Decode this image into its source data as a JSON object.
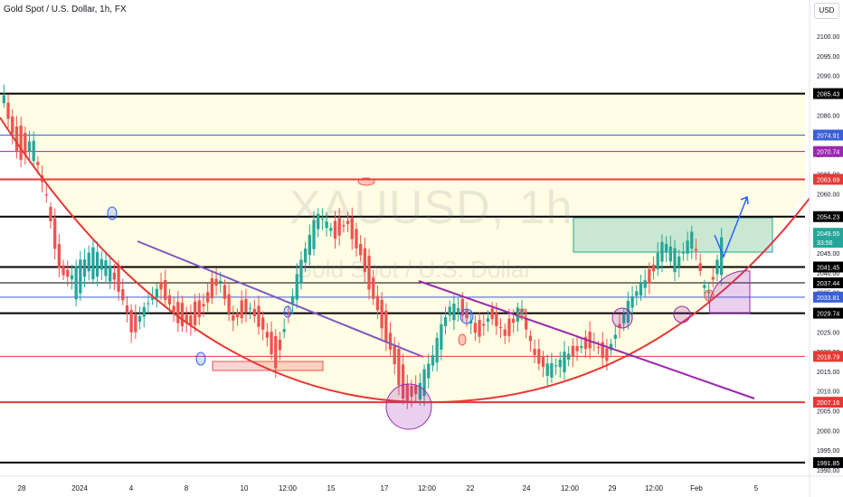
{
  "header": {
    "symbol_title": "Gold Spot / U.S. Dollar, 1h, FX",
    "currency": "USD"
  },
  "watermark": {
    "ticker": "XAUUSD, 1h",
    "name": "Gold Spot / U.S. Dollar"
  },
  "chart_data": {
    "type": "candlestick",
    "ylim": [
      1990,
      2103
    ],
    "y_ticks": [
      "2100.00",
      "2095.00",
      "2090.00",
      "2085.00",
      "2080.00",
      "2075.00",
      "2070.00",
      "2065.00",
      "2060.00",
      "2055.00",
      "2050.00",
      "2045.00",
      "2040.00",
      "2035.00",
      "2030.00",
      "2025.00",
      "2020.00",
      "2015.00",
      "2010.00",
      "2005.00",
      "2000.00",
      "1995.00",
      "1990.00"
    ],
    "x_ticks": [
      "28",
      "2024",
      "4",
      "8",
      "10",
      "12:00",
      "15",
      "17",
      "12:00",
      "22",
      "24",
      "12:00",
      "29",
      "12:00",
      "Feb",
      "5"
    ],
    "price_path": [
      [
        2083,
        2085
      ],
      [
        2078,
        2068
      ],
      [
        2070,
        2074
      ],
      [
        2061,
        2058
      ],
      [
        2045,
        2038
      ],
      [
        2034,
        2041
      ],
      [
        2040,
        2046
      ],
      [
        2039,
        2044
      ],
      [
        2040,
        2036
      ],
      [
        2028,
        2024
      ],
      [
        2030,
        2033
      ],
      [
        2038,
        2036
      ],
      [
        2032,
        2028
      ],
      [
        2030,
        2026
      ],
      [
        2034,
        2031
      ],
      [
        2040,
        2038
      ],
      [
        2030,
        2027
      ],
      [
        2033,
        2031
      ],
      [
        2029,
        2026
      ],
      [
        2022,
        2016
      ],
      [
        2030,
        2033
      ],
      [
        2041,
        2047
      ],
      [
        2052,
        2056
      ],
      [
        2052,
        2049
      ],
      [
        2054,
        2052
      ],
      [
        2048,
        2042
      ],
      [
        2036,
        2030
      ],
      [
        2025,
        2019
      ],
      [
        2014,
        2006
      ],
      [
        2008,
        2012
      ],
      [
        2016,
        2021
      ],
      [
        2028,
        2032
      ],
      [
        2032,
        2030
      ],
      [
        2026,
        2024
      ],
      [
        2030,
        2029
      ],
      [
        2026,
        2023
      ],
      [
        2030,
        2032
      ],
      [
        2022,
        2018
      ],
      [
        2014,
        2016
      ],
      [
        2016,
        2019
      ],
      [
        2022,
        2020
      ],
      [
        2024,
        2022
      ],
      [
        2020,
        2018
      ],
      [
        2026,
        2028
      ],
      [
        2032,
        2036
      ],
      [
        2040,
        2038
      ],
      [
        2044,
        2049
      ],
      [
        2041,
        2044
      ],
      [
        2048,
        2050
      ],
      [
        2035,
        2033
      ],
      [
        2041,
        2048
      ]
    ],
    "horizontal_levels": [
      {
        "value": 2085.43,
        "label": "2085.43",
        "color": "#000000",
        "label_bg": "#000000"
      },
      {
        "value": 2074.91,
        "label": "2074.91",
        "color": "#3a5fd9",
        "label_bg": "#3a5fd9"
      },
      {
        "value": 2070.74,
        "label": "2070.74",
        "color": "#9c27b0",
        "label_bg": "#9c27b0"
      },
      {
        "value": 2063.69,
        "label": "2063.69",
        "color": "#e53935",
        "label_bg": "#e53935"
      },
      {
        "value": 2054.23,
        "label": "2054.23",
        "color": "#000000",
        "label_bg": "#000000"
      },
      {
        "value": 2041.45,
        "label": "2041.45",
        "color": "#000000",
        "label_bg": "#000000"
      },
      {
        "value": 2037.44,
        "label": "2037.44",
        "color": "#000000",
        "label_bg": "#000000"
      },
      {
        "value": 2033.81,
        "label": "2033.81",
        "color": "#3a5fd9",
        "label_bg": "#3a5fd9"
      },
      {
        "value": 2029.74,
        "label": "2029.74",
        "color": "#000000",
        "label_bg": "#000000"
      },
      {
        "value": 2018.79,
        "label": "2018.79",
        "color": "#e53935",
        "label_bg": "#e53935"
      },
      {
        "value": 2007.16,
        "label": "2007.16",
        "color": "#e53935",
        "label_bg": "#e53935"
      },
      {
        "value": 1991.85,
        "label": "1991.85",
        "color": "#000000",
        "label_bg": "#000000"
      }
    ],
    "current_price": {
      "value": "2049.55",
      "countdown": "33:56",
      "color": "#26a69a"
    }
  },
  "colors": {
    "up": "#26a69a",
    "down": "#ef5350",
    "curve": "#e53935",
    "trend": "#9c27b0",
    "arrow": "#2962ff",
    "zone": "#fffde0"
  }
}
